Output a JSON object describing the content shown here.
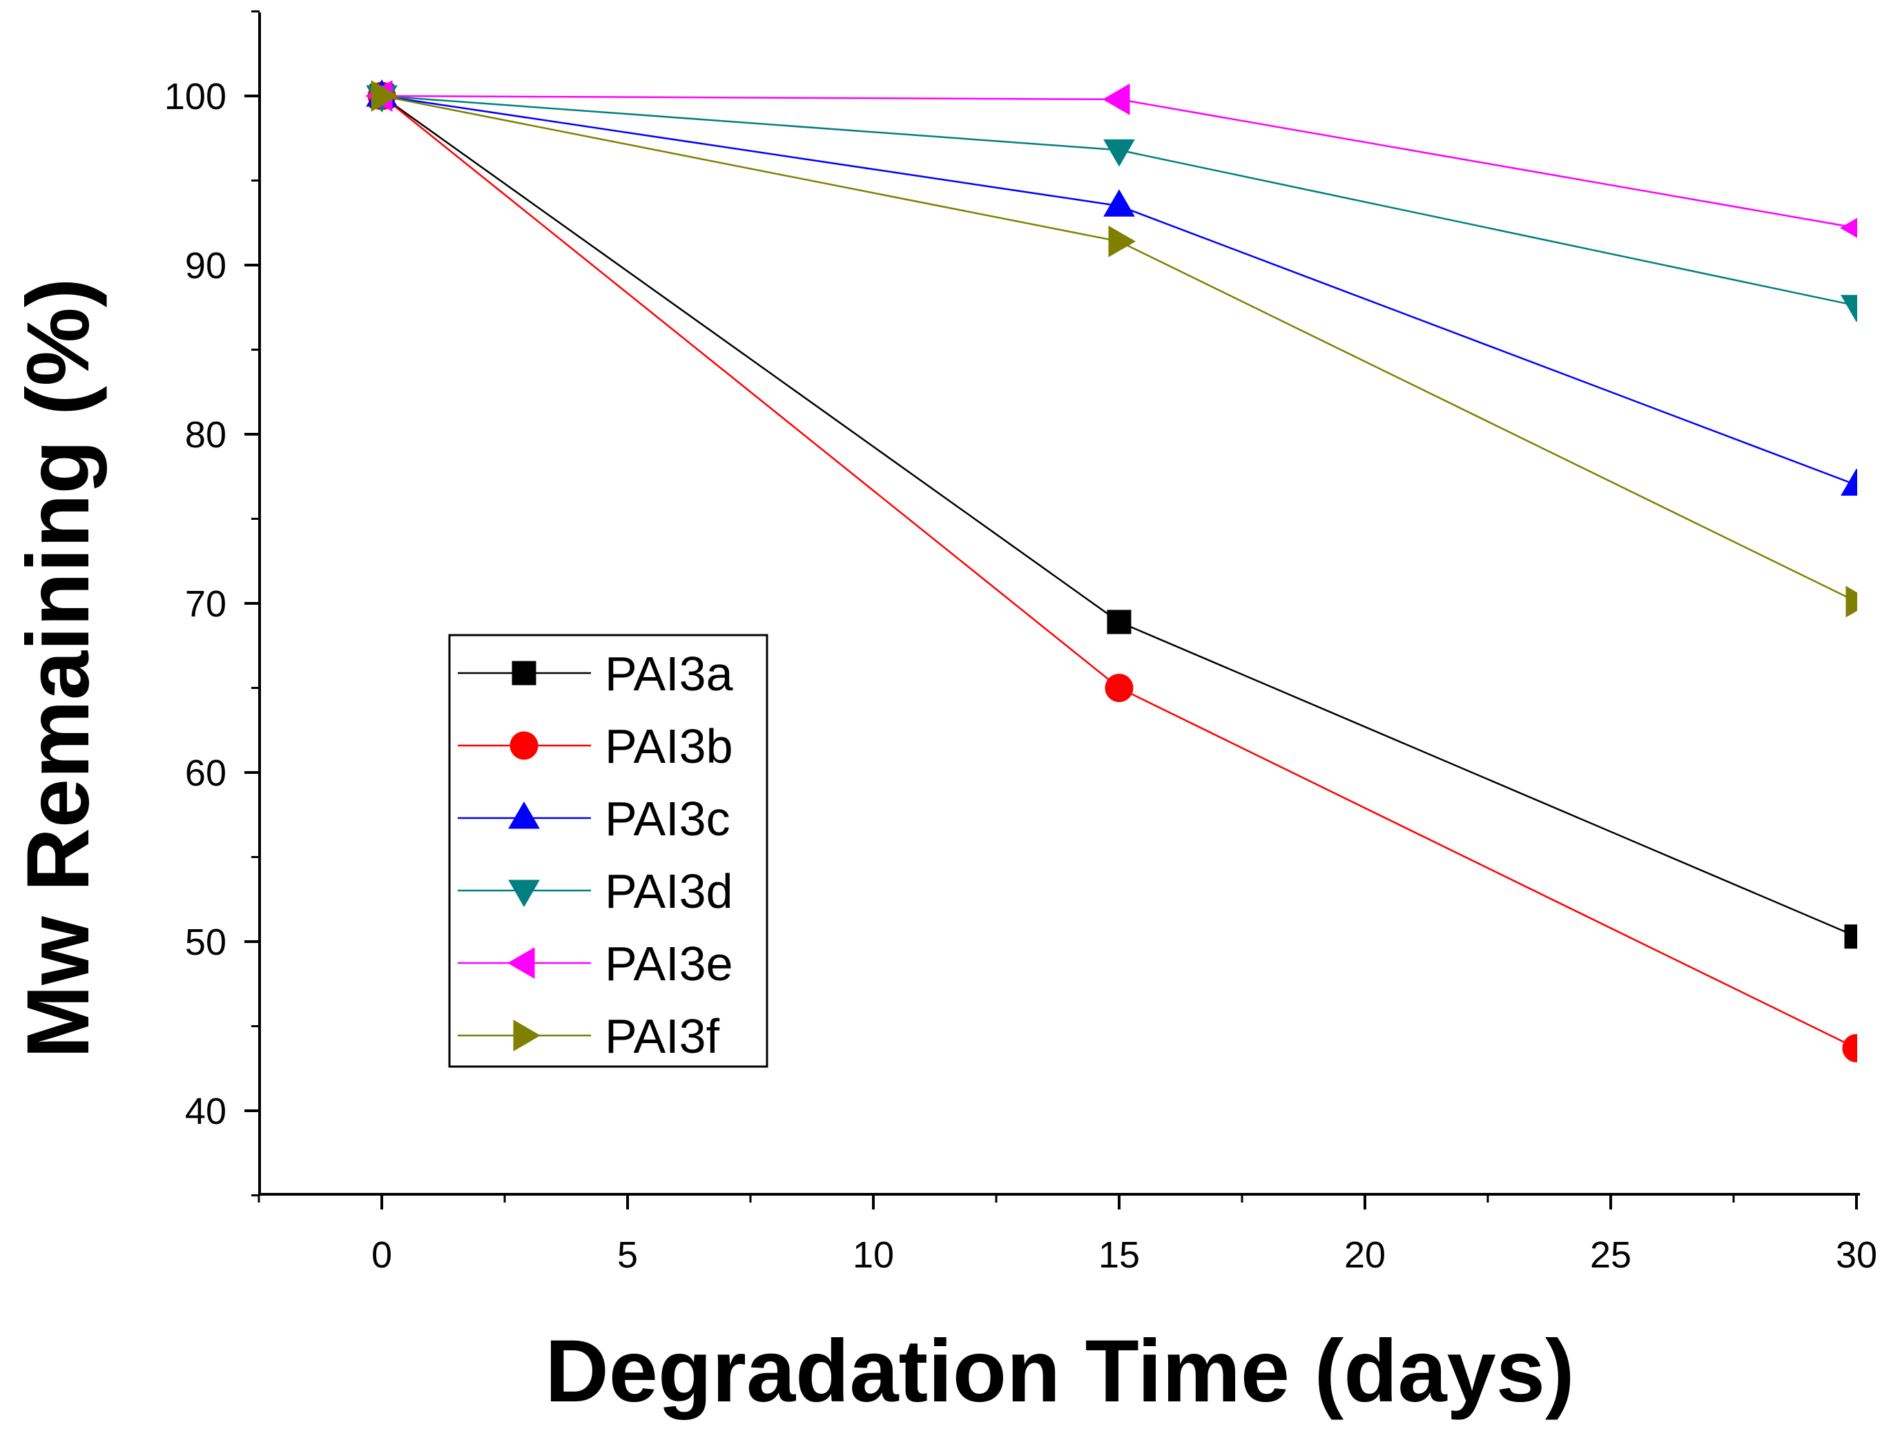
{
  "chart_data": {
    "type": "line",
    "title": "",
    "xlabel": "Degradation Time (days)",
    "ylabel": "Mw Remaining (%)",
    "xlim": [
      -2.5,
      30
    ],
    "ylim": [
      35,
      105
    ],
    "xticks": [
      0,
      5,
      10,
      15,
      20,
      25,
      30
    ],
    "xtick_labels": [
      "0",
      "5",
      "10",
      "15",
      "20",
      "25",
      "30"
    ],
    "yticks": [
      40,
      50,
      60,
      70,
      80,
      90,
      100
    ],
    "ytick_labels": [
      "40",
      "50",
      "60",
      "70",
      "80",
      "90",
      "100"
    ],
    "grid": false,
    "legend_position": "center-left",
    "x": [
      0,
      15,
      30
    ],
    "series": [
      {
        "name": "PAI3a",
        "color": "#000000",
        "marker": "square",
        "values": [
          100,
          68.9,
          50.3
        ]
      },
      {
        "name": "PAI3b",
        "color": "#ff0000",
        "marker": "circle",
        "values": [
          100,
          65.0,
          43.7
        ]
      },
      {
        "name": "PAI3c",
        "color": "#0000ff",
        "marker": "triangle-up",
        "values": [
          100,
          93.5,
          77.0
        ]
      },
      {
        "name": "PAI3d",
        "color": "#008080",
        "marker": "triangle-down",
        "values": [
          100,
          96.8,
          87.6
        ]
      },
      {
        "name": "PAI3e",
        "color": "#ff00ff",
        "marker": "triangle-left",
        "values": [
          100,
          99.8,
          92.2
        ]
      },
      {
        "name": "PAI3f",
        "color": "#808000",
        "marker": "triangle-right",
        "values": [
          100,
          91.4,
          70.1
        ]
      }
    ]
  }
}
